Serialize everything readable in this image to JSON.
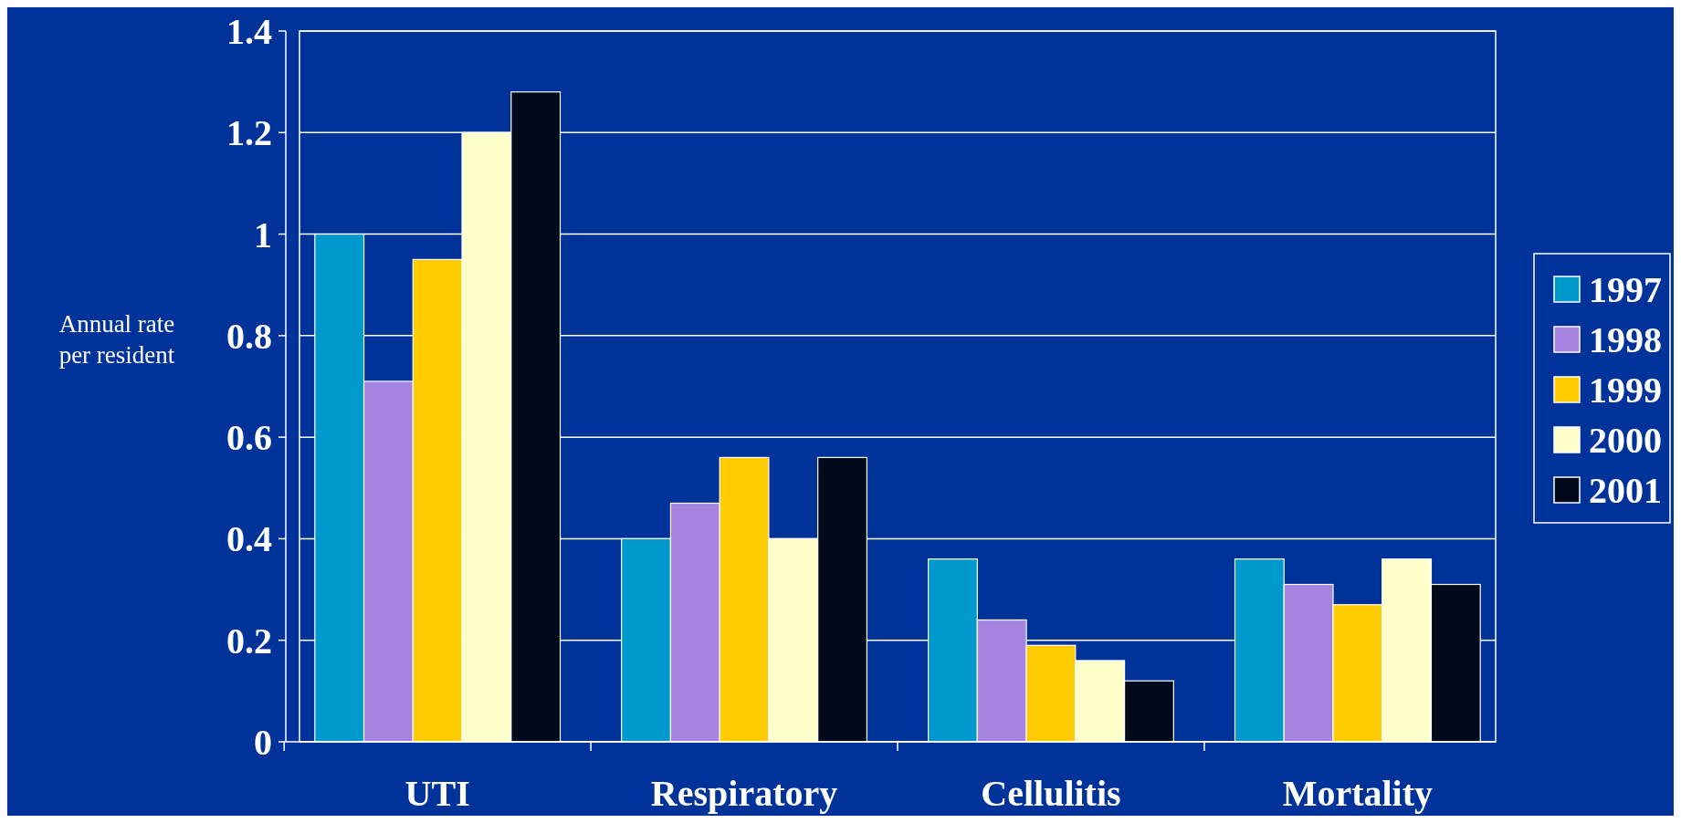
{
  "chart_data": {
    "type": "bar",
    "ylabel": "Annual rate per resident",
    "categories": [
      "UTI",
      "Respiratory",
      "Cellulitis",
      "Mortality"
    ],
    "series": [
      {
        "name": "1997",
        "color": "#0099cc",
        "values": [
          1.0,
          0.4,
          0.36,
          0.36
        ]
      },
      {
        "name": "1998",
        "color": "#a683e0",
        "values": [
          0.71,
          0.47,
          0.24,
          0.31
        ]
      },
      {
        "name": "1999",
        "color": "#ffcc00",
        "values": [
          0.95,
          0.56,
          0.19,
          0.27
        ]
      },
      {
        "name": "2000",
        "color": "#ffffcc",
        "values": [
          1.2,
          0.4,
          0.16,
          0.36
        ]
      },
      {
        "name": "2001",
        "color": "#000a1a",
        "values": [
          1.28,
          0.56,
          0.12,
          0.31
        ]
      }
    ],
    "ylim": [
      0,
      1.4
    ],
    "yticks": [
      0,
      0.2,
      0.4,
      0.6,
      0.8,
      1,
      1.2,
      1.4
    ],
    "grid": "y",
    "legend": "right"
  }
}
